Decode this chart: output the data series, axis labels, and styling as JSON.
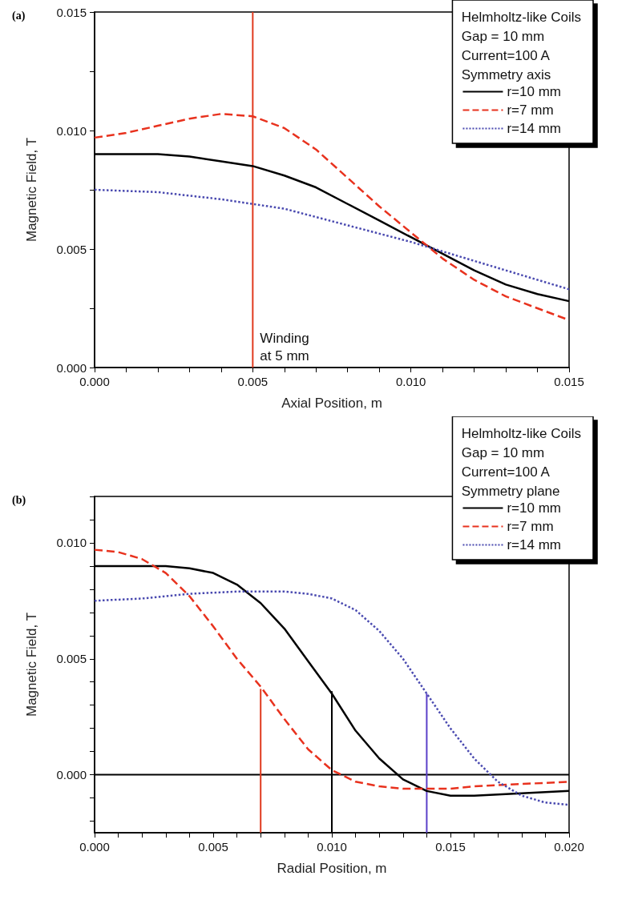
{
  "chart_data": [
    {
      "type": "line",
      "title": "(a)",
      "xlabel": "Axial Position, m",
      "ylabel": "Magnetic Field, T",
      "legend": "top right",
      "legend_title": "Helmholtz-like Coils\nGap = 10 mm\nCurrent=100 A\nSymmetry axis",
      "xlim": [
        0,
        0.015
      ],
      "ylim": [
        0,
        0.015
      ],
      "xticks": [
        {
          "value": 0,
          "label": "0.000"
        },
        {
          "value": 0.001,
          "label": null
        },
        {
          "value": 0.002,
          "label": null
        },
        {
          "value": 0.003,
          "label": null
        },
        {
          "value": 0.004,
          "label": null
        },
        {
          "value": 0.005,
          "label": "0.005"
        },
        {
          "value": 0.006,
          "label": null
        },
        {
          "value": 0.007,
          "label": null
        },
        {
          "value": 0.008,
          "label": null
        },
        {
          "value": 0.009,
          "label": null
        },
        {
          "value": 0.01,
          "label": "0.010"
        },
        {
          "value": 0.011,
          "label": null
        },
        {
          "value": 0.012,
          "label": null
        },
        {
          "value": 0.013,
          "label": null
        },
        {
          "value": 0.014,
          "label": null
        },
        {
          "value": 0.015,
          "label": "0.015"
        }
      ],
      "yticks": [
        {
          "value": 0,
          "label": "0.000"
        },
        {
          "value": 0.0025,
          "label": null
        },
        {
          "value": 0.005,
          "label": "0.005"
        },
        {
          "value": 0.0075,
          "label": null
        },
        {
          "value": 0.01,
          "label": "0.010"
        },
        {
          "value": 0.0125,
          "label": null
        },
        {
          "value": 0.015,
          "label": "0.015"
        }
      ],
      "grid": false,
      "ref_lines": [
        {
          "axis": "x",
          "value": 0.005,
          "label": "Winding at 5 mm",
          "color": "#e03a1e"
        }
      ],
      "series": [
        {
          "name": "r=10 mm",
          "color": "#000000",
          "line_style": "solid",
          "x": [
            0,
            0.001,
            0.002,
            0.003,
            0.004,
            0.005,
            0.006,
            0.007,
            0.008,
            0.009,
            0.01,
            0.011,
            0.012,
            0.013,
            0.014,
            0.015
          ],
          "values": [
            0.009,
            0.009,
            0.009,
            0.0089,
            0.0087,
            0.0085,
            0.0081,
            0.0076,
            0.0069,
            0.0062,
            0.0055,
            0.0048,
            0.0041,
            0.0035,
            0.0031,
            0.0028
          ]
        },
        {
          "name": "r=7 mm",
          "color": "#e8321e",
          "line_style": "dashed",
          "x": [
            0,
            0.001,
            0.002,
            0.003,
            0.004,
            0.005,
            0.006,
            0.007,
            0.008,
            0.009,
            0.01,
            0.011,
            0.012,
            0.013,
            0.014,
            0.015
          ],
          "values": [
            0.0097,
            0.0099,
            0.0102,
            0.0105,
            0.0107,
            0.0106,
            0.0101,
            0.0092,
            0.008,
            0.0068,
            0.0057,
            0.0046,
            0.0037,
            0.003,
            0.0025,
            0.002
          ]
        },
        {
          "name": "r=14 mm",
          "color": "#4a4ab0",
          "line_style": "dotted",
          "x": [
            0,
            0.002,
            0.004,
            0.005,
            0.006,
            0.008,
            0.01,
            0.012,
            0.014,
            0.015
          ],
          "values": [
            0.0075,
            0.0074,
            0.0071,
            0.0069,
            0.0067,
            0.006,
            0.0053,
            0.0045,
            0.0037,
            0.0033
          ]
        }
      ]
    },
    {
      "type": "line",
      "title": "(b)",
      "xlabel": "Radial Position, m",
      "ylabel": "Magnetic Field, T",
      "legend": "top right",
      "legend_title": "Helmholtz-like Coils\nGap = 10 mm\nCurrent=100 A\nSymmetry plane",
      "xlim": [
        0,
        0.02
      ],
      "ylim": [
        -0.0025,
        0.012
      ],
      "xticks": [
        {
          "value": 0,
          "label": "0.000"
        },
        {
          "value": 0.001,
          "label": null
        },
        {
          "value": 0.002,
          "label": null
        },
        {
          "value": 0.003,
          "label": null
        },
        {
          "value": 0.004,
          "label": null
        },
        {
          "value": 0.005,
          "label": "0.005"
        },
        {
          "value": 0.006,
          "label": null
        },
        {
          "value": 0.007,
          "label": null
        },
        {
          "value": 0.008,
          "label": null
        },
        {
          "value": 0.009,
          "label": null
        },
        {
          "value": 0.01,
          "label": "0.010"
        },
        {
          "value": 0.011,
          "label": null
        },
        {
          "value": 0.012,
          "label": null
        },
        {
          "value": 0.013,
          "label": null
        },
        {
          "value": 0.014,
          "label": null
        },
        {
          "value": 0.015,
          "label": "0.015"
        },
        {
          "value": 0.016,
          "label": null
        },
        {
          "value": 0.017,
          "label": null
        },
        {
          "value": 0.018,
          "label": null
        },
        {
          "value": 0.019,
          "label": null
        },
        {
          "value": 0.02,
          "label": "0.020"
        }
      ],
      "yticks": [
        {
          "value": -0.002,
          "label": null
        },
        {
          "value": -0.001,
          "label": null
        },
        {
          "value": 0,
          "label": "0.000"
        },
        {
          "value": 0.001,
          "label": null
        },
        {
          "value": 0.002,
          "label": null
        },
        {
          "value": 0.003,
          "label": null
        },
        {
          "value": 0.004,
          "label": null
        },
        {
          "value": 0.005,
          "label": "0.005"
        },
        {
          "value": 0.006,
          "label": null
        },
        {
          "value": 0.007,
          "label": null
        },
        {
          "value": 0.008,
          "label": null
        },
        {
          "value": 0.009,
          "label": null
        },
        {
          "value": 0.01,
          "label": "0.010"
        },
        {
          "value": 0.011,
          "label": null
        },
        {
          "value": 0.012,
          "label": null
        }
      ],
      "grid": false,
      "ref_lines": [
        {
          "axis": "y",
          "value": 0,
          "color": "#000000"
        }
      ],
      "series": [
        {
          "name": "r=10 mm",
          "color": "#000000",
          "line_style": "solid",
          "x": [
            0,
            0.002,
            0.003,
            0.004,
            0.005,
            0.006,
            0.007,
            0.008,
            0.009,
            0.01,
            0.011,
            0.012,
            0.013,
            0.014,
            0.015,
            0.016,
            0.018,
            0.02
          ],
          "values": [
            0.009,
            0.009,
            0.009,
            0.0089,
            0.0087,
            0.0082,
            0.0074,
            0.0063,
            0.0049,
            0.0035,
            0.0019,
            0.0007,
            -0.0002,
            -0.0007,
            -0.0009,
            -0.0009,
            -0.0008,
            -0.0007
          ]
        },
        {
          "name": "r=7 mm",
          "color": "#e8321e",
          "line_style": "dashed",
          "x": [
            0,
            0.001,
            0.002,
            0.003,
            0.004,
            0.005,
            0.006,
            0.007,
            0.008,
            0.009,
            0.01,
            0.011,
            0.012,
            0.013,
            0.014,
            0.015,
            0.016,
            0.018,
            0.02
          ],
          "values": [
            0.0097,
            0.0096,
            0.0093,
            0.0087,
            0.0077,
            0.0064,
            0.005,
            0.0038,
            0.0024,
            0.0011,
            0.0002,
            -0.0003,
            -0.0005,
            -0.0006,
            -0.0006,
            -0.0006,
            -0.0005,
            -0.0004,
            -0.0003
          ]
        },
        {
          "name": "r=14 mm",
          "color": "#4a4ab0",
          "line_style": "dotted",
          "x": [
            0,
            0.002,
            0.004,
            0.006,
            0.008,
            0.009,
            0.01,
            0.011,
            0.012,
            0.013,
            0.014,
            0.015,
            0.016,
            0.017,
            0.018,
            0.019,
            0.02
          ],
          "values": [
            0.0075,
            0.0076,
            0.0078,
            0.0079,
            0.0079,
            0.0078,
            0.0076,
            0.0071,
            0.0062,
            0.005,
            0.0035,
            0.002,
            0.0007,
            -0.0003,
            -0.0009,
            -0.0012,
            -0.0013
          ]
        },
        {
          "color": "#e03a1e",
          "line_style": "solid",
          "x": [
            0.007,
            0.007
          ],
          "values": [
            -0.0025,
            0.0037
          ]
        },
        {
          "color": "#000000",
          "line_style": "solid",
          "x": [
            0.01,
            0.01
          ],
          "values": [
            -0.0025,
            0.0036
          ]
        },
        {
          "color": "#5a3fc8",
          "line_style": "solid",
          "x": [
            0.014,
            0.014
          ],
          "values": [
            -0.0025,
            0.0035
          ]
        }
      ]
    }
  ]
}
